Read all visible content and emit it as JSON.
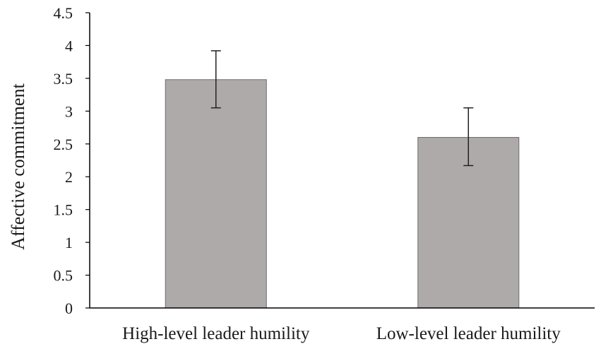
{
  "chart_data": {
    "type": "bar",
    "title": "",
    "xlabel": "",
    "ylabel": "Affective commitment",
    "ylim": [
      0,
      4.5
    ],
    "yticks": [
      "0",
      "0.5",
      "1",
      "1.5",
      "2",
      "2.5",
      "3",
      "3.5",
      "4",
      "4.5"
    ],
    "categories": [
      "High-level leader humility",
      "Low-level leader humility"
    ],
    "values": [
      3.48,
      2.6
    ],
    "error_bars": [
      {
        "low": 3.05,
        "high": 3.92
      },
      {
        "low": 2.17,
        "high": 3.05
      }
    ],
    "grid": false,
    "legend": "none",
    "bar_color": "#aeaaaa",
    "bar_edge_color": "#ffffff",
    "axis_color": "#000000"
  }
}
